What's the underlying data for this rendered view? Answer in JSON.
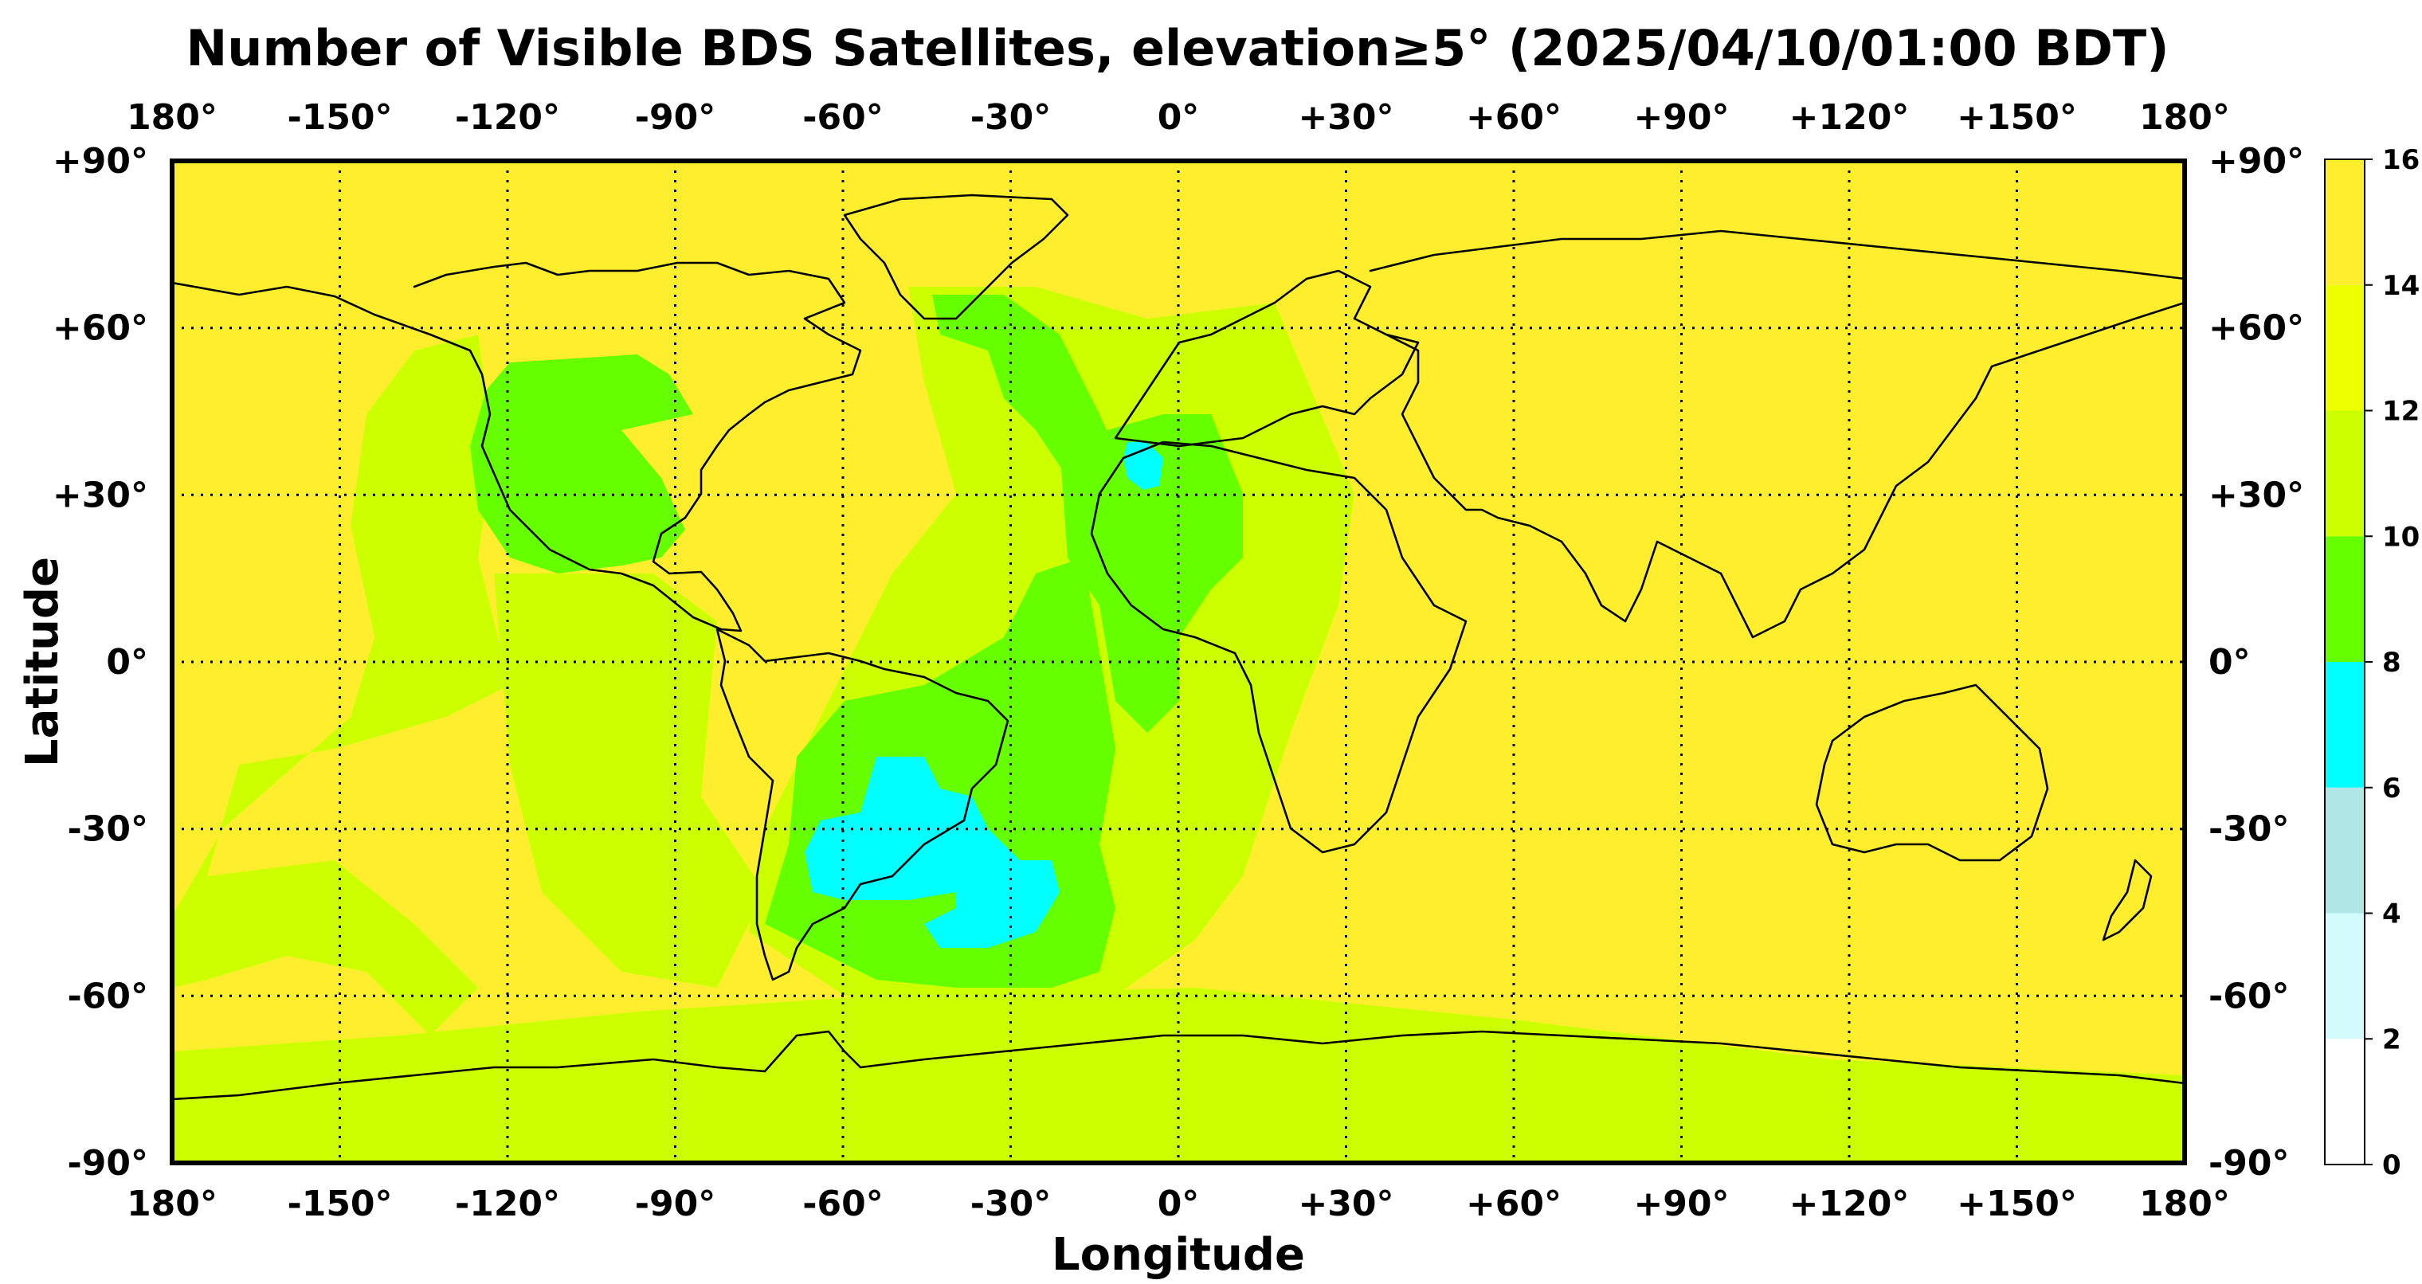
{
  "title": "Number of Visible BDS Satellites, elevation≥5° (2025/04/10/01:00 BDT)",
  "x_axis_label": "Longitude",
  "y_axis_label": "Latitude",
  "lon_ticks": [
    "180°",
    "-150°",
    "-120°",
    "-90°",
    "-60°",
    "-30°",
    "0°",
    "+30°",
    "+60°",
    "+90°",
    "+120°",
    "+150°",
    "180°"
  ],
  "lat_ticks": [
    "+90°",
    "+60°",
    "+30°",
    "0°",
    "-30°",
    "-60°",
    "-90°"
  ],
  "colorbar": {
    "ticks": [
      "16",
      "14",
      "12",
      "10",
      "8",
      "6",
      "4",
      "2",
      "0"
    ],
    "bins": [
      {
        "range": [
          0,
          2
        ],
        "color": "#ffffff"
      },
      {
        "range": [
          2,
          4
        ],
        "color": "#d4fbfb"
      },
      {
        "range": [
          4,
          6
        ],
        "color": "#b0e6e6"
      },
      {
        "range": [
          6,
          8
        ],
        "color": "#00ffff"
      },
      {
        "range": [
          8,
          10
        ],
        "color": "#66ff00"
      },
      {
        "range": [
          10,
          12
        ],
        "color": "#ccff00"
      },
      {
        "range": [
          12,
          14
        ],
        "color": "#eeff00"
      },
      {
        "range": [
          14,
          16
        ],
        "color": "#ffee2e"
      }
    ]
  },
  "map_regions": [
    {
      "value": 14.5,
      "note": "background (most of globe)"
    },
    {
      "value": 11,
      "note": "central/eastern Pacific band"
    },
    {
      "value": 11,
      "note": "southern high latitudes"
    },
    {
      "value": 9,
      "note": "North America / North Atlantic"
    },
    {
      "value": 9,
      "note": "South Atlantic / South America"
    },
    {
      "value": 9,
      "note": "West Africa / Gulf of Guinea"
    },
    {
      "value": 7,
      "note": "Uruguay / SE Brazil"
    },
    {
      "value": 7,
      "note": "South Atlantic off Argentina"
    },
    {
      "value": 7,
      "note": "Strait of Gibraltar"
    }
  ]
}
